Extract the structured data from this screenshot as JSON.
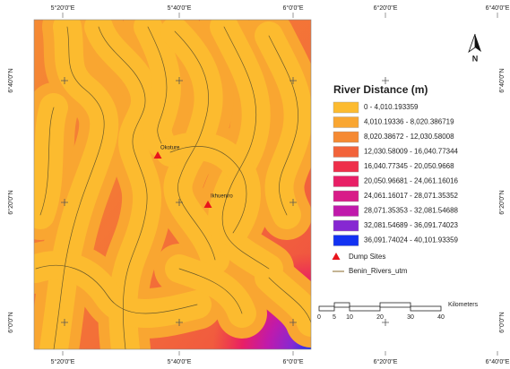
{
  "map": {
    "top_labels": [
      "5°20'0\"E",
      "5°40'0\"E",
      "6°0'0\"E",
      "6°20'0\"E",
      "6°40'0\"E"
    ],
    "bottom_labels": [
      "5°20'0\"E",
      "5°40'0\"E",
      "6°0'0\"E",
      "6°20'0\"E",
      "6°40'0\"E"
    ],
    "left_labels": [
      "6°40'0\"N",
      "6°20'0\"N",
      "6°0'0\"N"
    ],
    "right_labels": [
      "6°40'0\"N",
      "6°20'0\"N",
      "6°0'0\"N"
    ],
    "north": "N",
    "sites": [
      "Okoture",
      "Ikhueniro"
    ],
    "legend": {
      "title": "River Distance (m)",
      "classes": [
        {
          "label": "0 - 4,010.193359",
          "color": "#fcbb2f"
        },
        {
          "label": "4,010.19336 - 8,020.386719",
          "color": "#f9a631"
        },
        {
          "label": "8,020.38672 - 12,030.58008",
          "color": "#f58a33"
        },
        {
          "label": "12,030.58009 - 16,040.77344",
          "color": "#f2633a"
        },
        {
          "label": "16,040.77345 - 20,050.9668",
          "color": "#ee2f4a"
        },
        {
          "label": "20,050.96681 - 24,061.16016",
          "color": "#e81f66"
        },
        {
          "label": "24,061.16017 - 28,071.35352",
          "color": "#d81c88"
        },
        {
          "label": "28,071.35353 - 32,081.54688",
          "color": "#c01aab"
        },
        {
          "label": "32,081.54689 - 36,091.74023",
          "color": "#8628d2"
        },
        {
          "label": "36,091.74024 - 40,101.93359",
          "color": "#1232f2"
        }
      ],
      "dump_sites": "Dump Sites",
      "rivers": "Benin_Rivers_utm"
    },
    "scale": {
      "unit": "Kilometers",
      "ticks": [
        0,
        5,
        10,
        20,
        30,
        40
      ]
    }
  }
}
